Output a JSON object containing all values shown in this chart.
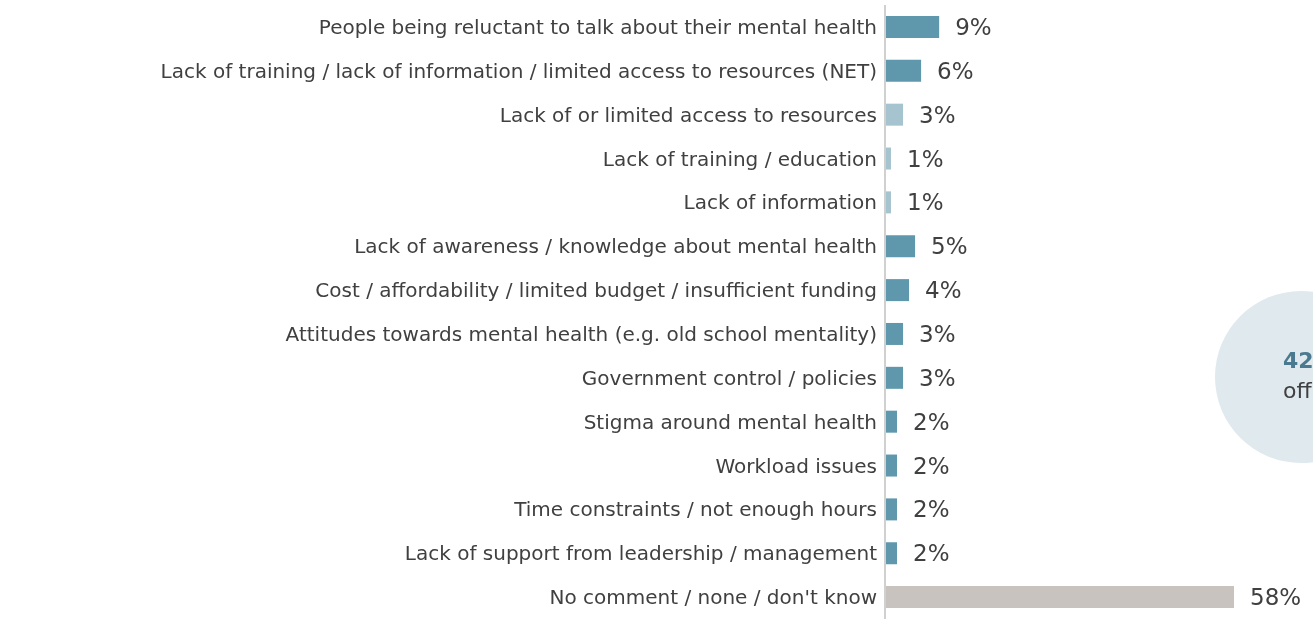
{
  "chart_data": {
    "type": "bar",
    "orientation": "horizontal",
    "categories": [
      "People being reluctant to talk about their mental health",
      "Lack of training / lack of information / limited access to resources (NET)",
      "Lack of or limited access to resources",
      "Lack of training / education",
      "Lack of information",
      "Lack of awareness / knowledge about mental health",
      "Cost / affordability / limited budget / insufficient funding",
      "Attitudes towards mental health (e.g. old school mentality)",
      "Government control / policies",
      "Stigma around mental health",
      "Workload issues",
      "Time constraints / not enough hours",
      "Lack of support from leadership / management",
      "No comment / none / don't know"
    ],
    "values": [
      9,
      6,
      3,
      1,
      1,
      5,
      4,
      3,
      3,
      2,
      2,
      2,
      2,
      58
    ],
    "value_labels": [
      "9%",
      "6%",
      "3%",
      "1%",
      "1%",
      "5%",
      "4%",
      "3%",
      "3%",
      "2%",
      "2%",
      "2%",
      "2%",
      "58%"
    ],
    "colors": [
      "#5f98ad",
      "#5f98ad",
      "#a5c4d0",
      "#a5c4d0",
      "#a5c4d0",
      "#5f98ad",
      "#5f98ad",
      "#5f98ad",
      "#5f98ad",
      "#5f98ad",
      "#5f98ad",
      "#5f98ad",
      "#5f98ad",
      "#c8c3bf"
    ],
    "tick_labels": "y",
    "annotations": [
      "42",
      "off"
    ]
  }
}
